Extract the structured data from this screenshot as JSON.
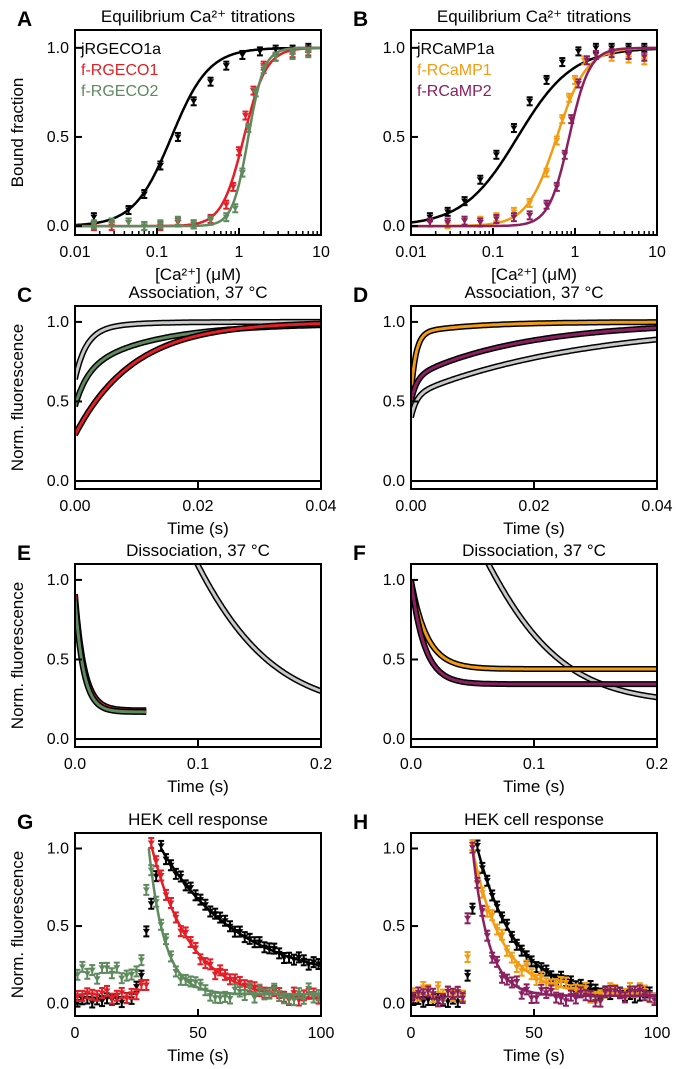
{
  "chart_data": [
    {
      "panel": "A",
      "type": "scatter",
      "title": "Equilibrium Ca²⁺ titrations",
      "xlabel": "[Ca²⁺] (μM)",
      "ylabel": "Bound fraction",
      "xscale": "log",
      "xlim": [
        0.01,
        10
      ],
      "ylim": [
        -0.05,
        1.1
      ],
      "xticks": [
        0.01,
        0.1,
        1,
        10
      ],
      "xticklabels": [
        "0.01",
        "0.1",
        "1",
        "10"
      ],
      "yticks": [
        0,
        0.5,
        1
      ],
      "yticklabels": [
        "0.0",
        "0.5",
        "1.0"
      ],
      "legend_position": "top-left",
      "series": [
        {
          "name": "jRGECO1a",
          "color": "#000000",
          "kd": 0.15,
          "n": 1.9,
          "x": [
            0.017,
            0.028,
            0.045,
            0.07,
            0.11,
            0.18,
            0.28,
            0.45,
            0.7,
            1.1,
            1.8,
            2.8,
            4.5,
            7
          ],
          "y": [
            0.05,
            0.02,
            0.09,
            0.18,
            0.34,
            0.5,
            0.7,
            0.81,
            0.9,
            0.96,
            0.98,
            0.99,
            0.99,
            1.0
          ]
        },
        {
          "name": "f-RGECO1",
          "color": "#e41e26",
          "kd": 1.15,
          "n": 3.2,
          "x": [
            0.017,
            0.028,
            0.045,
            0.07,
            0.11,
            0.18,
            0.28,
            0.45,
            0.7,
            0.85,
            1.0,
            1.2,
            1.5,
            2,
            2.8,
            4.5,
            7
          ],
          "y": [
            0.0,
            0.0,
            0.02,
            0.0,
            0.0,
            0.02,
            0.01,
            0.04,
            0.12,
            0.22,
            0.42,
            0.62,
            0.76,
            0.9,
            0.95,
            0.97,
            0.98
          ]
        },
        {
          "name": "f-RGECO2",
          "color": "#5e8a5e",
          "kd": 1.3,
          "n": 4.5,
          "x": [
            0.017,
            0.028,
            0.045,
            0.07,
            0.11,
            0.18,
            0.28,
            0.45,
            0.7,
            0.9,
            1.1,
            1.3,
            1.6,
            2,
            2.8,
            4.5,
            7
          ],
          "y": [
            0.01,
            0.02,
            0.02,
            0.0,
            0.01,
            0.03,
            0.01,
            0.03,
            0.05,
            0.1,
            0.3,
            0.55,
            0.75,
            0.88,
            0.95,
            0.96,
            0.97
          ]
        }
      ]
    },
    {
      "panel": "B",
      "type": "scatter",
      "title": "Equilibrium Ca²⁺ titrations",
      "xlabel": "[Ca²⁺] (μM)",
      "ylabel": "",
      "xscale": "log",
      "xlim": [
        0.01,
        10
      ],
      "ylim": [
        -0.05,
        1.1
      ],
      "xticks": [
        0.01,
        0.1,
        1,
        10
      ],
      "xticklabels": [
        "0.01",
        "0.1",
        "1",
        "10"
      ],
      "yticks": [
        0,
        0.5,
        1
      ],
      "yticklabels": [
        "0.0",
        "0.5",
        "1.0"
      ],
      "legend_position": "top-left",
      "series": [
        {
          "name": "jRCaMP1a",
          "color": "#000000",
          "kd": 0.2,
          "n": 1.3,
          "x": [
            0.017,
            0.028,
            0.045,
            0.07,
            0.11,
            0.18,
            0.28,
            0.45,
            0.7,
            1.1,
            1.8,
            2.8,
            4.5,
            7
          ],
          "y": [
            0.05,
            0.08,
            0.14,
            0.26,
            0.4,
            0.55,
            0.7,
            0.82,
            0.92,
            0.98,
            1.0,
            1.0,
            1.0,
            1.0
          ]
        },
        {
          "name": "f-RCaMP1",
          "color": "#f39c12",
          "kd": 0.6,
          "n": 2.4,
          "x": [
            0.017,
            0.028,
            0.045,
            0.07,
            0.11,
            0.18,
            0.28,
            0.45,
            0.6,
            0.7,
            0.85,
            1.0,
            1.3,
            1.8,
            2.8,
            4.5,
            7
          ],
          "y": [
            0.02,
            0.01,
            0.03,
            0.03,
            0.05,
            0.08,
            0.13,
            0.3,
            0.48,
            0.6,
            0.72,
            0.82,
            0.93,
            0.96,
            0.95,
            0.94,
            0.93
          ]
        },
        {
          "name": "f-RCaMP2",
          "color": "#8b2060",
          "kd": 0.85,
          "n": 3.5,
          "x": [
            0.017,
            0.028,
            0.045,
            0.07,
            0.11,
            0.18,
            0.28,
            0.45,
            0.6,
            0.75,
            0.9,
            1.1,
            1.4,
            1.8,
            2.8,
            4.5,
            7
          ],
          "y": [
            0.02,
            0.02,
            0.03,
            0.02,
            0.04,
            0.05,
            0.06,
            0.12,
            0.22,
            0.4,
            0.6,
            0.8,
            0.93,
            0.96,
            0.97,
            0.96,
            0.95
          ]
        }
      ]
    },
    {
      "panel": "C",
      "type": "line",
      "title": "Association, 37 °C",
      "xlabel": "Time (s)",
      "ylabel": "Norm. fluorescence",
      "xlim": [
        0,
        0.04
      ],
      "ylim": [
        -0.05,
        1.1
      ],
      "xticks": [
        0,
        0.02,
        0.04
      ],
      "xticklabels": [
        "0.00",
        "0.02",
        "0.04"
      ],
      "yticks": [
        0,
        0.5,
        1
      ],
      "yticklabels": [
        "0.0",
        "0.5",
        "1.0"
      ],
      "baseline": 0,
      "series": [
        {
          "color": "#c8c8c8",
          "y0": 0.64,
          "plateau": 1.0,
          "fast_amp": 0.3,
          "tau_fast": 0.0018,
          "tau_slow": 0.006
        },
        {
          "color": "#5e8a5e",
          "y0": 0.47,
          "plateau": 0.99,
          "fast_amp": 0.22,
          "tau_fast": 0.002,
          "tau_slow": 0.012
        },
        {
          "color": "#e41e26",
          "y0": 0.29,
          "plateau": 1.0,
          "fast_amp": 0.0,
          "tau_fast": 0.003,
          "tau_slow": 0.0095
        }
      ]
    },
    {
      "panel": "D",
      "type": "line",
      "title": "Association, 37 °C",
      "xlabel": "Time (s)",
      "ylabel": "",
      "xlim": [
        0,
        0.04
      ],
      "ylim": [
        -0.05,
        1.1
      ],
      "xticks": [
        0,
        0.02,
        0.04
      ],
      "xticklabels": [
        "0.00",
        "0.02",
        "0.04"
      ],
      "yticks": [
        0,
        0.5,
        1
      ],
      "yticklabels": [
        "0.0",
        "0.5",
        "1.0"
      ],
      "baseline": 0,
      "series": [
        {
          "color": "#f39c12",
          "y0": 0.55,
          "plateau": 1.0,
          "fast_amp": 0.38,
          "tau_fast": 0.0008,
          "tau_slow": 0.01
        },
        {
          "color": "#8b2060",
          "y0": 0.5,
          "plateau": 1.0,
          "fast_amp": 0.15,
          "tau_fast": 0.0009,
          "tau_slow": 0.018
        },
        {
          "color": "#c8c8c8",
          "y0": 0.4,
          "plateau": 1.0,
          "fast_amp": 0.14,
          "tau_fast": 0.0009,
          "tau_slow": 0.028
        }
      ]
    },
    {
      "panel": "E",
      "type": "line",
      "title": "Dissociation, 37 °C",
      "xlabel": "Time (s)",
      "ylabel": "Norm. fluorescence",
      "xlim": [
        0,
        0.2
      ],
      "ylim": [
        -0.05,
        1.1
      ],
      "xticks": [
        0,
        0.1,
        0.2
      ],
      "xticklabels": [
        "0.0",
        "0.1",
        "0.2"
      ],
      "yticks": [
        0,
        0.5,
        1
      ],
      "yticklabels": [
        "0.0",
        "0.5",
        "1.0"
      ],
      "baseline": 0,
      "series": [
        {
          "color": "#c8c8c8",
          "kind": "sigmoid",
          "a": 0.95,
          "plateau": 0.17,
          "t0": 0.055,
          "scale": 0.045,
          "tmax": 0.2
        },
        {
          "color": "#e41e26",
          "kind": "exp",
          "a": 0.91,
          "plateau": 0.18,
          "tau": 0.0075,
          "tmax": 0.058
        },
        {
          "color": "#5e8a5e",
          "kind": "exp",
          "a": 0.88,
          "plateau": 0.17,
          "tau": 0.007,
          "tmax": 0.058
        }
      ]
    },
    {
      "panel": "F",
      "type": "line",
      "title": "Dissociation, 37 °C",
      "xlabel": "Time (s)",
      "ylabel": "",
      "xlim": [
        0,
        0.2
      ],
      "ylim": [
        -0.05,
        1.1
      ],
      "xticks": [
        0,
        0.1,
        0.2
      ],
      "xticklabels": [
        "0.0",
        "0.1",
        "0.2"
      ],
      "yticks": [
        0,
        0.5,
        1
      ],
      "yticklabels": [
        "0.0",
        "0.5",
        "1.0"
      ],
      "baseline": 0,
      "series": [
        {
          "color": "#c8c8c8",
          "kind": "sigmoid",
          "a": 1.0,
          "plateau": 0.22,
          "t0": 0.035,
          "scale": 0.04,
          "tmax": 0.2
        },
        {
          "color": "#f39c12",
          "kind": "exp",
          "a": 1.0,
          "plateau": 0.44,
          "tau": 0.013,
          "tmax": 0.2
        },
        {
          "color": "#8b2060",
          "kind": "exp",
          "a": 1.0,
          "plateau": 0.345,
          "tau": 0.011,
          "tmax": 0.2
        }
      ]
    },
    {
      "panel": "G",
      "type": "scatter",
      "title": "HEK cell response",
      "xlabel": "Time (s)",
      "ylabel": "Norm. fluorescence",
      "xlim": [
        0,
        100
      ],
      "ylim": [
        -0.08,
        1.1
      ],
      "xticks": [
        0,
        50,
        100
      ],
      "xticklabels": [
        "0",
        "50",
        "100"
      ],
      "yticks": [
        0,
        0.5,
        1
      ],
      "yticklabels": [
        "0.0",
        "0.5",
        "1.0"
      ],
      "series": [
        {
          "color": "#000000",
          "base": 0.02,
          "noise": 0.02,
          "onset": 24,
          "peak_t": 35,
          "peak": 1.0,
          "tau": 32,
          "fit_plateau": 0.13,
          "pre_spike": [
            27,
            0.18
          ]
        },
        {
          "color": "#e41e26",
          "base": 0.06,
          "noise": 0.03,
          "onset": 25,
          "peak_t": 31,
          "peak": 1.02,
          "tau": 16,
          "fit_plateau": 0.02,
          "pre_spike": [
            28,
            0.12
          ]
        },
        {
          "color": "#5e8a5e",
          "base": 0.2,
          "noise": 0.04,
          "onset": 27,
          "peak_t": 30,
          "peak": 1.0,
          "tau": 6.5,
          "fit_plateau": 0.06,
          "pre_spike": [
            26,
            0.28
          ]
        }
      ]
    },
    {
      "panel": "H",
      "type": "scatter",
      "title": "HEK cell response",
      "xlabel": "Time (s)",
      "ylabel": "",
      "xlim": [
        0,
        100
      ],
      "ylim": [
        -0.08,
        1.1
      ],
      "xticks": [
        0,
        50,
        100
      ],
      "xticklabels": [
        "0",
        "50",
        "100"
      ],
      "yticks": [
        0,
        0.5,
        1
      ],
      "yticklabels": [
        "0.0",
        "0.5",
        "1.0"
      ],
      "series": [
        {
          "color": "#000000",
          "base": 0.03,
          "noise": 0.02,
          "onset": 22,
          "peak_t": 27,
          "peak": 1.0,
          "tau": 16,
          "fit_plateau": 0.04,
          "pre_spike": [
            22,
            0.18
          ]
        },
        {
          "color": "#f39c12",
          "base": 0.08,
          "noise": 0.04,
          "onset": 23,
          "peak_t": 25,
          "peak": 1.0,
          "tau": 12,
          "fit_plateau": 0.06,
          "pre_spike": [
            24,
            0.3
          ]
        },
        {
          "color": "#8b2060",
          "base": 0.05,
          "noise": 0.04,
          "onset": 23,
          "peak_t": 25,
          "peak": 1.0,
          "tau": 6.5,
          "fit_plateau": 0.05,
          "pre_spike": [
            24,
            0.55
          ]
        }
      ]
    }
  ]
}
